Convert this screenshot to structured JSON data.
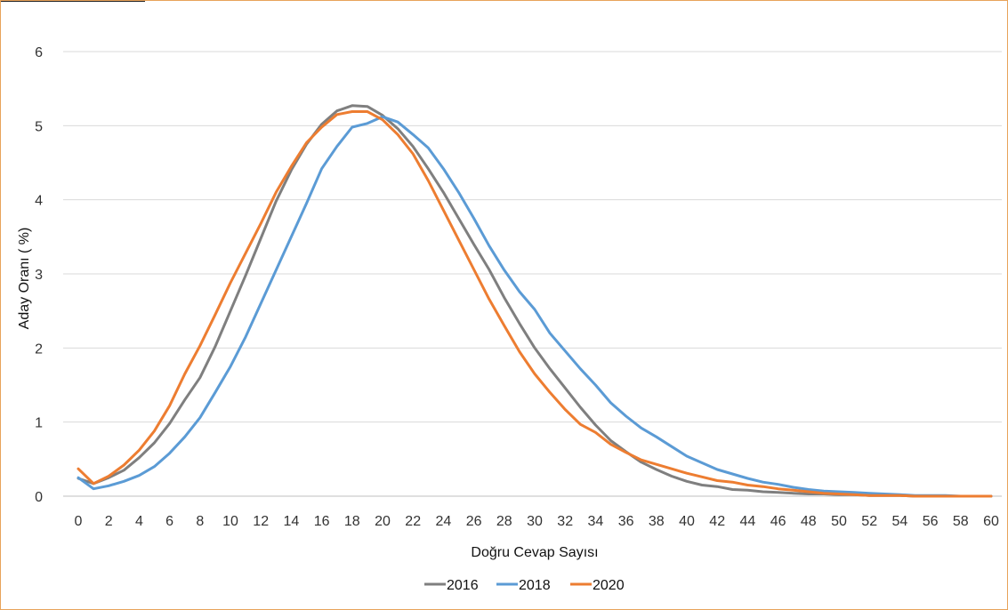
{
  "chart_data": {
    "type": "line",
    "title": "",
    "xlabel": "Doğru Cevap Sayısı",
    "ylabel": "Aday Oranı ( %)",
    "xlim": [
      0,
      60
    ],
    "ylim": [
      0,
      6
    ],
    "x_ticks": [
      0,
      2,
      4,
      6,
      8,
      10,
      12,
      14,
      16,
      18,
      20,
      22,
      24,
      26,
      28,
      30,
      32,
      34,
      36,
      38,
      40,
      42,
      44,
      46,
      48,
      50,
      52,
      54,
      56,
      58,
      60
    ],
    "y_ticks": [
      0,
      1,
      2,
      3,
      4,
      5,
      6
    ],
    "grid": "horizontal",
    "legend_position": "bottom",
    "series": [
      {
        "name": "2016",
        "color": "#7f7f7f",
        "x": [
          0,
          1,
          2,
          3,
          4,
          5,
          6,
          7,
          8,
          9,
          10,
          11,
          12,
          13,
          14,
          15,
          16,
          17,
          18,
          19,
          20,
          21,
          22,
          23,
          24,
          25,
          26,
          27,
          28,
          29,
          30,
          31,
          32,
          33,
          34,
          35,
          36,
          37,
          38,
          39,
          40,
          41,
          42,
          43,
          44,
          45,
          46,
          47,
          48,
          49,
          50,
          51,
          52,
          53,
          54,
          55,
          56,
          57,
          58,
          59,
          60
        ],
        "values": [
          0.24,
          0.17,
          0.25,
          0.35,
          0.52,
          0.72,
          0.98,
          1.3,
          1.6,
          2.02,
          2.5,
          2.98,
          3.48,
          3.98,
          4.4,
          4.75,
          5.02,
          5.2,
          5.27,
          5.26,
          5.14,
          4.96,
          4.72,
          4.42,
          4.1,
          3.75,
          3.4,
          3.06,
          2.68,
          2.33,
          2.0,
          1.72,
          1.46,
          1.2,
          0.96,
          0.75,
          0.6,
          0.46,
          0.36,
          0.27,
          0.2,
          0.15,
          0.13,
          0.09,
          0.08,
          0.06,
          0.05,
          0.04,
          0.03,
          0.03,
          0.02,
          0.02,
          0.01,
          0.01,
          0.01,
          0.0,
          0.0,
          0.0,
          0.0,
          0.0,
          0.0
        ]
      },
      {
        "name": "2018",
        "color": "#5b9bd5",
        "x": [
          0,
          1,
          2,
          3,
          4,
          5,
          6,
          7,
          8,
          9,
          10,
          11,
          12,
          13,
          14,
          15,
          16,
          17,
          18,
          19,
          20,
          21,
          22,
          23,
          24,
          25,
          26,
          27,
          28,
          29,
          30,
          31,
          32,
          33,
          34,
          35,
          36,
          37,
          38,
          39,
          40,
          41,
          42,
          43,
          44,
          45,
          46,
          47,
          48,
          49,
          50,
          51,
          52,
          53,
          54,
          55,
          56,
          57,
          58,
          59,
          60
        ],
        "values": [
          0.25,
          0.1,
          0.14,
          0.2,
          0.28,
          0.4,
          0.58,
          0.8,
          1.06,
          1.4,
          1.75,
          2.15,
          2.6,
          3.05,
          3.5,
          3.95,
          4.42,
          4.72,
          4.98,
          5.03,
          5.12,
          5.05,
          4.88,
          4.7,
          4.42,
          4.1,
          3.75,
          3.38,
          3.05,
          2.76,
          2.52,
          2.2,
          1.96,
          1.72,
          1.5,
          1.26,
          1.08,
          0.92,
          0.8,
          0.67,
          0.54,
          0.45,
          0.36,
          0.3,
          0.24,
          0.19,
          0.16,
          0.12,
          0.09,
          0.07,
          0.06,
          0.05,
          0.04,
          0.03,
          0.02,
          0.01,
          0.01,
          0.01,
          0.0,
          0.0,
          0.0
        ]
      },
      {
        "name": "2020",
        "color": "#ed7d31",
        "x": [
          0,
          1,
          2,
          3,
          4,
          5,
          6,
          7,
          8,
          9,
          10,
          11,
          12,
          13,
          14,
          15,
          16,
          17,
          18,
          19,
          20,
          21,
          22,
          23,
          24,
          25,
          26,
          27,
          28,
          29,
          30,
          31,
          32,
          33,
          34,
          35,
          36,
          37,
          38,
          39,
          40,
          41,
          42,
          43,
          44,
          45,
          46,
          47,
          48,
          49,
          50,
          51,
          52,
          53,
          54,
          55,
          56,
          57,
          58,
          59,
          60
        ],
        "values": [
          0.37,
          0.17,
          0.27,
          0.42,
          0.62,
          0.88,
          1.22,
          1.65,
          2.03,
          2.45,
          2.88,
          3.28,
          3.68,
          4.1,
          4.45,
          4.77,
          4.98,
          5.15,
          5.19,
          5.19,
          5.08,
          4.88,
          4.62,
          4.26,
          3.86,
          3.46,
          3.06,
          2.66,
          2.3,
          1.95,
          1.65,
          1.4,
          1.17,
          0.97,
          0.86,
          0.7,
          0.59,
          0.49,
          0.43,
          0.37,
          0.31,
          0.26,
          0.21,
          0.19,
          0.15,
          0.13,
          0.1,
          0.08,
          0.06,
          0.04,
          0.03,
          0.02,
          0.01,
          0.01,
          0.01,
          0.0,
          0.0,
          0.0,
          0.0,
          0.0,
          0.0
        ]
      }
    ]
  }
}
